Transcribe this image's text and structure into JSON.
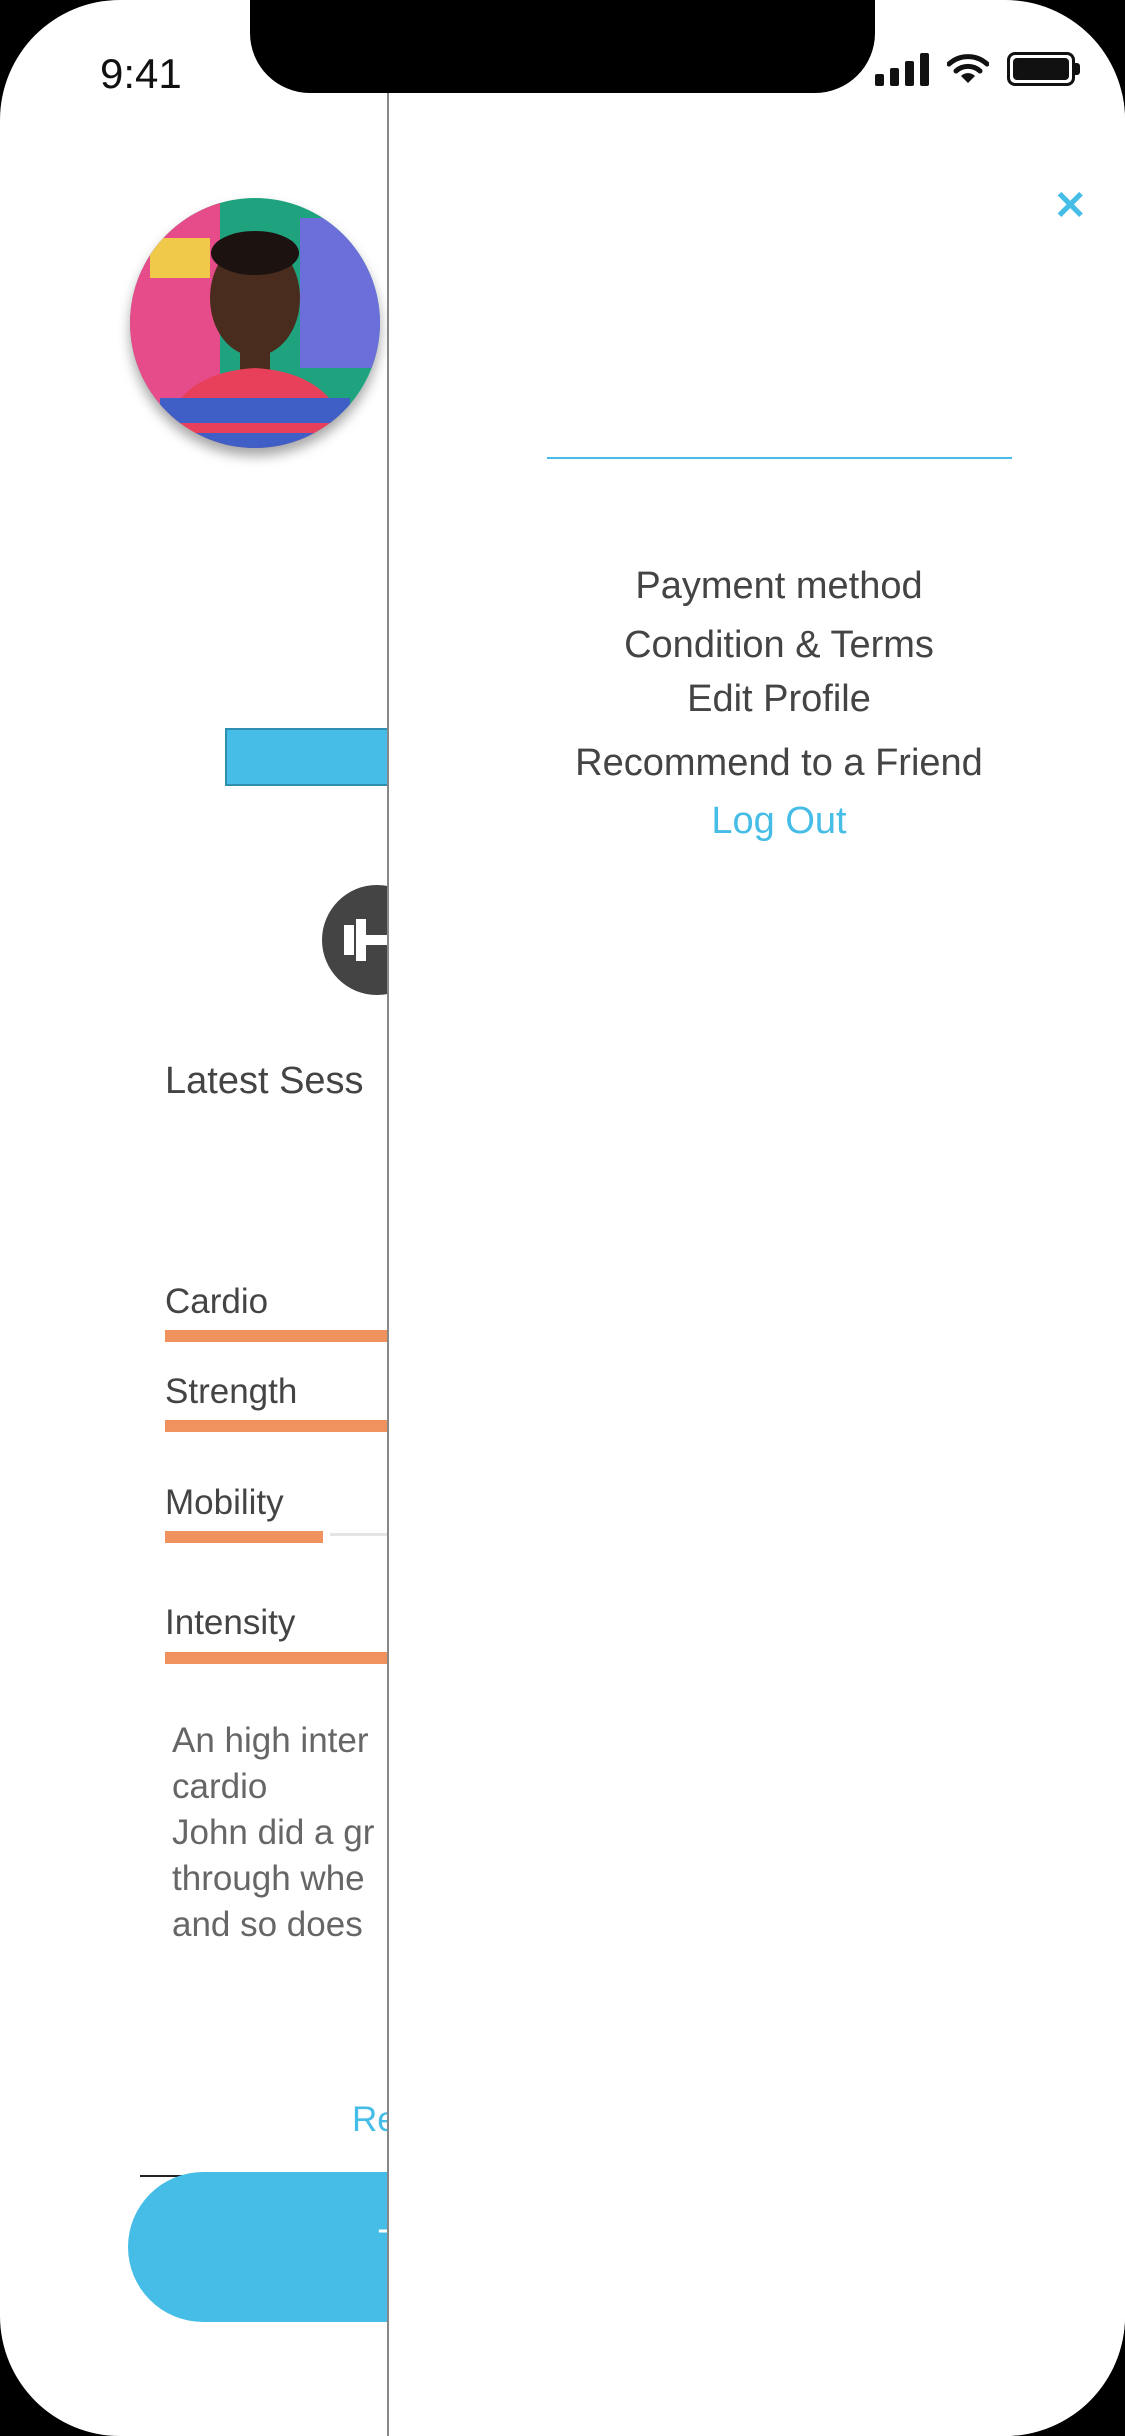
{
  "status_bar": {
    "time": "9:41"
  },
  "profile": {
    "latest_session_heading": "Latest Sess",
    "metrics": [
      {
        "label": "Cardio",
        "value": 0.95
      },
      {
        "label": "Strength",
        "value": 0.95
      },
      {
        "label": "Mobility",
        "value": 0.45
      },
      {
        "label": "Intensity",
        "value": 0.95
      }
    ],
    "description": "An high inter\ncardio\nJohn did a gr\nthrough whe\nand so does",
    "read_link": "Re",
    "primary_button_label": "T"
  },
  "drawer": {
    "close_icon": "close-icon",
    "menu": [
      "Payment method",
      "Condition & Terms",
      "Edit Profile",
      "Recommend to a Friend"
    ],
    "logout": "Log Out"
  },
  "colors": {
    "accent": "#45bde6",
    "bar": "#f0925e"
  }
}
